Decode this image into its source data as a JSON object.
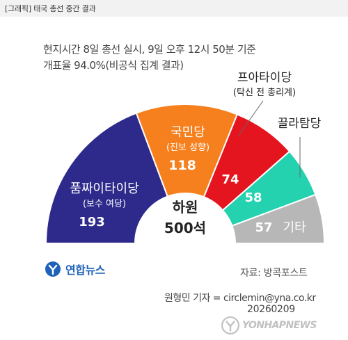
{
  "header": {
    "title": "[그래픽] 태국 총선 중간 결과"
  },
  "subtitle": {
    "line1": "현지시간 8일 총선 실시, 9일 오후 12시 50분 기준",
    "line2": "개표율 94.0%(비공식 집계 결과)"
  },
  "chart_data": {
    "type": "pie",
    "subtype": "parliament-half-donut",
    "title": "",
    "center_label": [
      "하원",
      "500석"
    ],
    "total": 500,
    "slices": [
      {
        "party": "품짜이타이당",
        "note": "(보수 여당)",
        "value": 193,
        "color": "#2d2a8b",
        "text_color": "#ffffff"
      },
      {
        "party": "국민당",
        "note": "(진보 성향)",
        "value": 118,
        "color": "#f7801e",
        "text_color": "#ffffff"
      },
      {
        "party": "프아타이당",
        "note": "(탁신 전 총리계)",
        "value": 74,
        "color": "#e4151f",
        "text_color": "#ffffff"
      },
      {
        "party": "끌라탐당",
        "note": "",
        "value": 58,
        "color": "#24d2b0",
        "text_color": "#ffffff"
      },
      {
        "party": "기타",
        "note": "",
        "value": 57,
        "color": "#b7b7b7",
        "text_color": "#ffffff"
      }
    ]
  },
  "footer": {
    "logo_text": "연합뉴스",
    "source": "자료: 방콕포스트",
    "credit": "원형민 기자 = circlemin@yna.co.kr",
    "date": "20260209",
    "watermark": "YONHAPNEWS"
  },
  "colors": {
    "header_bg": "#f2f2f2",
    "logo": "#1f63b8"
  }
}
